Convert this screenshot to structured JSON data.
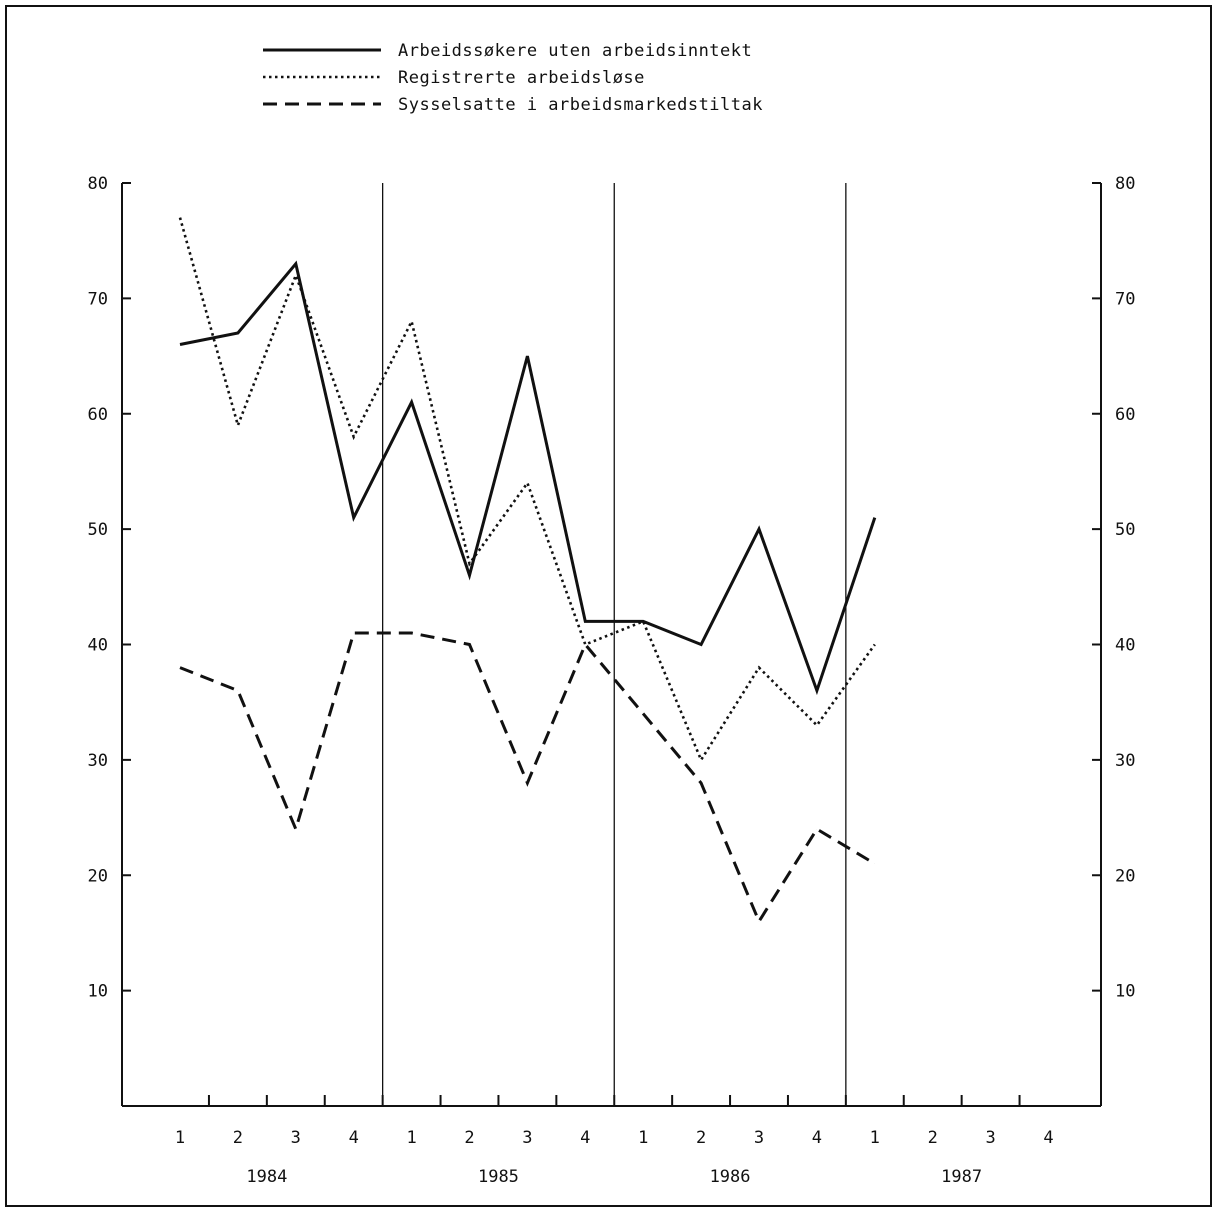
{
  "chart_data": {
    "type": "line",
    "title": "",
    "xlabel": "",
    "ylabel": "",
    "ylim": [
      0,
      80
    ],
    "yticks": [
      "10",
      "20",
      "30",
      "40",
      "50",
      "60",
      "70",
      "80"
    ],
    "grid": false,
    "legend_position": "top",
    "x_quarter_labels": [
      "1",
      "2",
      "3",
      "4",
      "1",
      "2",
      "3",
      "4",
      "1",
      "2",
      "3",
      "4",
      "1",
      "2",
      "3",
      "4"
    ],
    "x_year_labels": [
      "1984",
      "1985",
      "1986",
      "1987"
    ],
    "categories": [
      "1984 Q1",
      "1984 Q2",
      "1984 Q3",
      "1984 Q4",
      "1985 Q1",
      "1985 Q2",
      "1985 Q3",
      "1985 Q4",
      "1986 Q1",
      "1986 Q2",
      "1986 Q3",
      "1986 Q4",
      "1987 Q1"
    ],
    "series": [
      {
        "name": "Arbeidssøkere uten arbeidsinntekt",
        "style": "solid",
        "values": [
          66,
          67,
          73,
          51,
          61,
          46,
          65,
          42,
          42,
          40,
          50,
          36,
          51
        ]
      },
      {
        "name": "Registrerte arbeidsløse",
        "style": "dotted",
        "values": [
          77,
          59,
          72,
          58,
          68,
          47,
          54,
          40,
          42,
          30,
          38,
          33,
          40
        ]
      },
      {
        "name": "Sysselsatte i arbeidsmarkedstiltak",
        "style": "dashed",
        "values": [
          38,
          36,
          24,
          41,
          41,
          40,
          28,
          40,
          34,
          28,
          16,
          24,
          21
        ]
      }
    ]
  }
}
